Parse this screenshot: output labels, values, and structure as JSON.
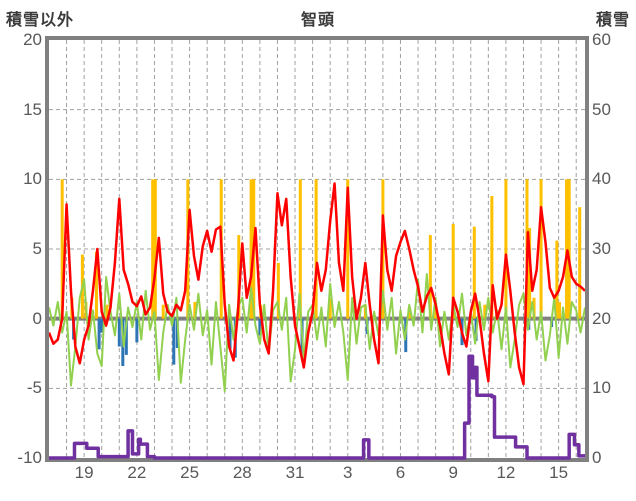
{
  "header": {
    "left_axis_title": "積雪以外",
    "station_title": "智頭",
    "right_axis_title": "積雪"
  },
  "colors": {
    "frame": "#808080",
    "zero_line": "#808080",
    "gridline": "#a0a0a0",
    "tick_text": "#595959",
    "precip_bar": "#FFC000",
    "temp_line": "#FF0000",
    "green_line": "#92D050",
    "blue_bar": "#2E75B6",
    "snow_line": "#7030A0"
  },
  "chart_data": {
    "type": "line",
    "title": "智頭",
    "left_axis": {
      "label": "積雪以外",
      "min": -10,
      "max": 20,
      "ticks": [
        20,
        15,
        10,
        5,
        0,
        -5,
        -10
      ]
    },
    "right_axis": {
      "label": "積雪",
      "min": 0,
      "max": 60,
      "ticks": [
        60,
        50,
        40,
        30,
        20,
        10,
        0
      ]
    },
    "x_axis": {
      "domain": [
        17,
        47.5
      ],
      "gridline_step_days": 1,
      "labels": [
        {
          "day": 19,
          "label": "19"
        },
        {
          "day": 22,
          "label": "22"
        },
        {
          "day": 25,
          "label": "25"
        },
        {
          "day": 28,
          "label": "28"
        },
        {
          "day": 31,
          "label": "31"
        },
        {
          "day": 34,
          "label": "3"
        },
        {
          "day": 37,
          "label": "6"
        },
        {
          "day": 40,
          "label": "9"
        },
        {
          "day": 43,
          "label": "12"
        },
        {
          "day": 46,
          "label": "15"
        }
      ],
      "hgrid_values": [
        15,
        10,
        5,
        -5
      ]
    },
    "series": [
      {
        "name": "precipitation-bars",
        "type": "bar",
        "axis": "left",
        "color": "#FFC000",
        "points": [
          [
            17.75,
            10
          ],
          [
            18.3,
            1.5
          ],
          [
            18.9,
            4.6
          ],
          [
            19.1,
            1.2
          ],
          [
            19.7,
            4.8
          ],
          [
            20.3,
            1.0
          ],
          [
            22.9,
            10
          ],
          [
            23.05,
            10
          ],
          [
            23.5,
            1.0
          ],
          [
            24.9,
            10
          ],
          [
            25.3,
            1.2
          ],
          [
            26.8,
            10
          ],
          [
            27.8,
            6.0
          ],
          [
            28.5,
            10
          ],
          [
            28.65,
            10
          ],
          [
            29.05,
            1.0
          ],
          [
            30.05,
            4.0
          ],
          [
            31.3,
            10
          ],
          [
            32.2,
            10
          ],
          [
            33.0,
            1.5
          ],
          [
            34.0,
            10
          ],
          [
            35.0,
            1.0
          ],
          [
            36.0,
            10
          ],
          [
            37.5,
            0.8
          ],
          [
            38.7,
            6.0
          ],
          [
            39.0,
            1.0
          ],
          [
            40.0,
            6.8
          ],
          [
            41.2,
            6.6
          ],
          [
            41.8,
            1.0
          ],
          [
            42.2,
            8.8
          ],
          [
            43.0,
            10
          ],
          [
            44.2,
            10
          ],
          [
            44.35,
            6.5
          ],
          [
            44.6,
            1.5
          ],
          [
            45.0,
            10
          ],
          [
            45.9,
            5.6
          ],
          [
            46.05,
            1.2
          ],
          [
            46.45,
            10
          ],
          [
            46.6,
            10
          ],
          [
            47.2,
            8.0
          ]
        ]
      },
      {
        "name": "blue-bars",
        "type": "bar",
        "axis": "left",
        "color": "#2E75B6",
        "points": [
          [
            18.4,
            -1.5
          ],
          [
            19.85,
            -2.2
          ],
          [
            20.0,
            -1.0
          ],
          [
            21.0,
            -2.0
          ],
          [
            21.2,
            -3.4
          ],
          [
            21.4,
            -2.6
          ],
          [
            22.0,
            -1.7
          ],
          [
            24.1,
            -3.3
          ],
          [
            24.3,
            -2.1
          ],
          [
            27.3,
            -2.2
          ],
          [
            27.6,
            -2.8
          ],
          [
            29.0,
            -1.2
          ],
          [
            31.4,
            -2.5
          ],
          [
            35.1,
            -1.1
          ],
          [
            37.3,
            -2.4
          ],
          [
            40.5,
            -1.9
          ],
          [
            41.3,
            -1.6
          ],
          [
            44.3,
            -0.8
          ],
          [
            45.6,
            -0.6
          ]
        ]
      },
      {
        "name": "green-line",
        "type": "line",
        "axis": "left",
        "color": "#92D050",
        "start": 17,
        "step": 0.25,
        "values": [
          0.8,
          -0.5,
          1.2,
          -1.0,
          0.5,
          -4.8,
          -2.0,
          1.5,
          2.8,
          -1.5,
          0.6,
          -2.5,
          -3.4,
          3.0,
          0.5,
          -1.2,
          1.8,
          -2.0,
          0.8,
          -0.6,
          1.2,
          -1.5,
          2.0,
          -0.8,
          0.5,
          -4.4,
          -1.0,
          1.0,
          -0.5,
          1.5,
          -4.6,
          -1.5,
          1.0,
          -0.8,
          1.8,
          -1.2,
          0.6,
          -3.3,
          1.2,
          -2.0,
          -5.2,
          1.0,
          -1.5,
          0.8,
          1.5,
          -1.0,
          2.2,
          -0.5,
          -1.8,
          1.0,
          -2.5,
          0.6,
          1.2,
          -0.8,
          1.5,
          -4.5,
          -2.2,
          1.8,
          -3.0,
          0.5,
          1.0,
          -1.5,
          0.8,
          -2.0,
          2.5,
          -0.6,
          1.2,
          -1.0,
          -4.4,
          1.5,
          -1.8,
          0.8,
          1.0,
          -2.2,
          0.5,
          -1.2,
          2.0,
          -0.8,
          1.5,
          -2.5,
          0.6,
          -1.5,
          1.0,
          -0.5,
          2.8,
          -1.0,
          3.2,
          -0.8,
          1.5,
          -2.0,
          0.5,
          -1.5,
          1.0,
          -0.6,
          1.8,
          -1.2,
          0.5,
          -1.8,
          1.2,
          -0.8,
          1.5,
          -1.0,
          0.6,
          -2.2,
          0.8,
          -3.5,
          -1.5,
          1.0,
          1.8,
          -0.8,
          1.2,
          -1.5,
          0.5,
          -3.0,
          -1.2,
          1.5,
          -2.8,
          0.8,
          -1.8,
          1.2,
          0.6,
          -1.0,
          0.8
        ]
      },
      {
        "name": "temperature-line",
        "type": "line",
        "axis": "left",
        "color": "#FF0000",
        "start": 17,
        "step": 0.25,
        "values": [
          -1.0,
          -1.8,
          -1.5,
          0.0,
          8.2,
          2.0,
          -2.0,
          -3.2,
          -1.5,
          -0.5,
          2.0,
          5.0,
          0.5,
          -0.5,
          0.8,
          4.0,
          8.6,
          3.5,
          2.5,
          1.2,
          0.9,
          1.6,
          0.3,
          0.8,
          2.9,
          5.8,
          1.8,
          0.5,
          0.2,
          1.0,
          0.6,
          2.0,
          7.8,
          4.5,
          2.8,
          5.2,
          6.3,
          4.8,
          6.4,
          6.6,
          1.0,
          -2.0,
          -3.0,
          0.5,
          5.4,
          1.5,
          3.0,
          6.5,
          1.0,
          -1.5,
          -2.5,
          2.0,
          9.0,
          6.7,
          8.6,
          3.0,
          -0.5,
          -2.0,
          -3.5,
          -1.0,
          0.5,
          4.0,
          2.0,
          3.5,
          7.0,
          9.7,
          4.0,
          2.0,
          9.4,
          3.0,
          0.0,
          1.5,
          4.0,
          1.0,
          -1.5,
          -3.2,
          7.4,
          3.5,
          2.0,
          4.5,
          5.5,
          6.3,
          5.0,
          3.5,
          2.3,
          0.5,
          1.6,
          2.2,
          1.0,
          -0.5,
          -2.5,
          -4.0,
          1.5,
          0.5,
          -1.0,
          -2.0,
          0.5,
          1.8,
          0.0,
          -2.5,
          -4.5,
          2.4,
          0.0,
          1.0,
          4.6,
          2.0,
          -1.0,
          -3.5,
          -4.7,
          6.2,
          2.0,
          3.5,
          8.0,
          5.5,
          2.2,
          1.5,
          2.0,
          3.0,
          4.9,
          3.0,
          2.5,
          2.3,
          2.0
        ]
      },
      {
        "name": "snow-depth-line",
        "type": "step",
        "axis": "right",
        "color": "#7030A0",
        "points": [
          [
            17,
            0
          ],
          [
            18.35,
            0
          ],
          [
            18.45,
            2.1
          ],
          [
            19.1,
            2.1
          ],
          [
            19.15,
            1.4
          ],
          [
            19.75,
            1.4
          ],
          [
            19.8,
            0.2
          ],
          [
            21.45,
            0.2
          ],
          [
            21.5,
            3.9
          ],
          [
            21.7,
            3.9
          ],
          [
            21.75,
            0.6
          ],
          [
            22.05,
            0.6
          ],
          [
            22.1,
            2.7
          ],
          [
            22.2,
            2.0
          ],
          [
            22.55,
            2.0
          ],
          [
            22.6,
            0.2
          ],
          [
            22.95,
            0.2
          ],
          [
            23.0,
            0
          ],
          [
            34.85,
            0
          ],
          [
            34.9,
            2.6
          ],
          [
            35.15,
            2.6
          ],
          [
            35.2,
            0
          ],
          [
            40.55,
            0
          ],
          [
            40.65,
            5.0
          ],
          [
            40.9,
            14.6
          ],
          [
            41.1,
            11.5
          ],
          [
            41.25,
            13.0
          ],
          [
            41.35,
            9.0
          ],
          [
            42.2,
            8.8
          ],
          [
            42.35,
            3.0
          ],
          [
            43.5,
            3.0
          ],
          [
            43.55,
            1.6
          ],
          [
            44.1,
            1.6
          ],
          [
            44.2,
            0
          ],
          [
            46.5,
            0
          ],
          [
            46.6,
            3.4
          ],
          [
            46.85,
            3.4
          ],
          [
            46.9,
            1.9
          ],
          [
            47.1,
            1.9
          ],
          [
            47.15,
            0.3
          ],
          [
            47.5,
            0.3
          ]
        ]
      }
    ]
  }
}
